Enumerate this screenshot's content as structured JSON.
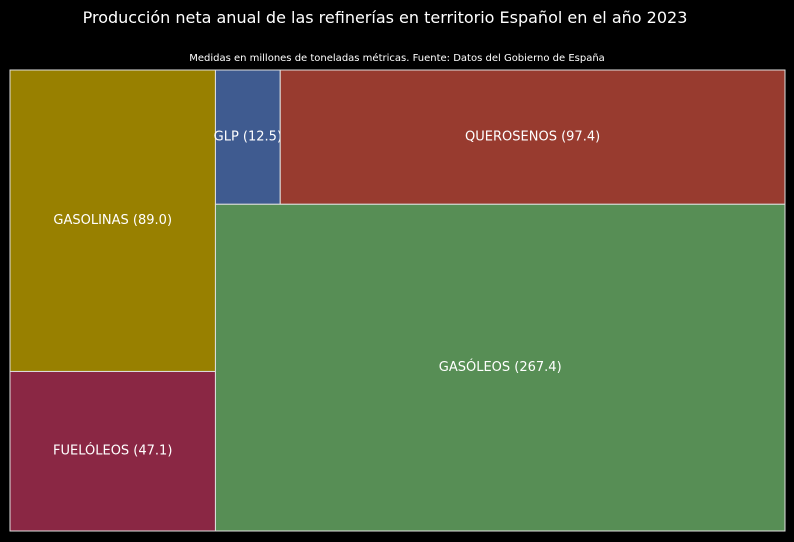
{
  "chart_data": {
    "type": "treemap",
    "title": "Producción neta anual de las refinerías en territorio Español en el año 2023",
    "subtitle": "Medidas en millones de toneladas métricas. Fuente: Datos del Gobierno de España",
    "items": [
      {
        "name": "GASOLINAS",
        "value": 89.0,
        "label": "GASOLINAS (89.0)",
        "color": "#988000"
      },
      {
        "name": "FUELÓLEOS",
        "value": 47.1,
        "label": "FUELÓLEOS (47.1)",
        "color": "#8a2744"
      },
      {
        "name": "GLP",
        "value": 12.5,
        "label": "GLP (12.5)",
        "color": "#3f5b90"
      },
      {
        "name": "QUEROSENOS",
        "value": 97.4,
        "label": "QUEROSENOS (97.4)",
        "color": "#983b2f"
      },
      {
        "name": "GASÓLEOS",
        "value": 267.4,
        "label": "GASÓLEOS (267.4)",
        "color": "#578e55"
      }
    ]
  }
}
